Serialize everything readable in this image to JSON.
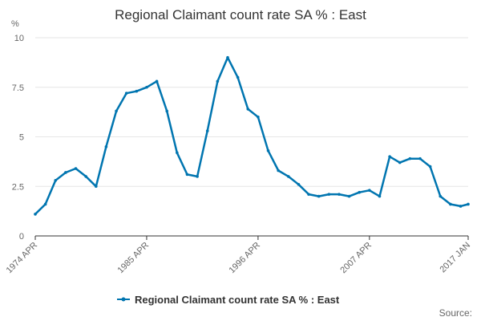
{
  "chart_data": {
    "type": "line",
    "title": "Regional Claimant count rate SA % : East",
    "y_unit_label": "%",
    "ylim": [
      0,
      10
    ],
    "y_ticks": [
      0,
      2.5,
      5,
      7.5,
      10
    ],
    "y_tick_labels": [
      "0",
      "2.5",
      "5",
      "7.5",
      "10"
    ],
    "x_range": [
      "1974 APR",
      "2017 JAN"
    ],
    "x_tick_labels": [
      "1974 APR",
      "1985 APR",
      "1996 APR",
      "2007 APR",
      "2017 JAN"
    ],
    "grid": "horizontal",
    "legend_position": "bottom",
    "source_label": "Source:",
    "colors": {
      "series": "#0075b0",
      "grid": "#e6e6e6",
      "axis": "#333333"
    },
    "series": [
      {
        "name": "Regional Claimant count rate SA % : East",
        "x": [
          "1974 APR",
          "1975 APR",
          "1976 APR",
          "1977 APR",
          "1978 APR",
          "1979 APR",
          "1980 APR",
          "1981 APR",
          "1982 APR",
          "1983 APR",
          "1984 APR",
          "1985 APR",
          "1986 APR",
          "1987 APR",
          "1988 APR",
          "1989 APR",
          "1990 APR",
          "1991 APR",
          "1992 APR",
          "1993 APR",
          "1994 APR",
          "1995 APR",
          "1996 APR",
          "1997 APR",
          "1998 APR",
          "1999 APR",
          "2000 APR",
          "2001 APR",
          "2002 APR",
          "2003 APR",
          "2004 APR",
          "2005 APR",
          "2006 APR",
          "2007 APR",
          "2008 APR",
          "2009 APR",
          "2010 APR",
          "2011 APR",
          "2012 APR",
          "2013 APR",
          "2014 APR",
          "2015 APR",
          "2016 APR",
          "2017 JAN"
        ],
        "values": [
          1.1,
          1.6,
          2.8,
          3.2,
          3.4,
          3.0,
          2.5,
          4.5,
          6.3,
          7.2,
          7.3,
          7.5,
          7.8,
          6.3,
          4.2,
          3.1,
          3.0,
          5.3,
          7.8,
          9.0,
          8.0,
          6.4,
          6.0,
          4.3,
          3.3,
          3.0,
          2.6,
          2.1,
          2.0,
          2.1,
          2.1,
          2.0,
          2.2,
          2.3,
          2.0,
          4.0,
          3.7,
          3.9,
          3.9,
          3.5,
          2.0,
          1.6,
          1.5,
          1.6
        ]
      }
    ]
  }
}
